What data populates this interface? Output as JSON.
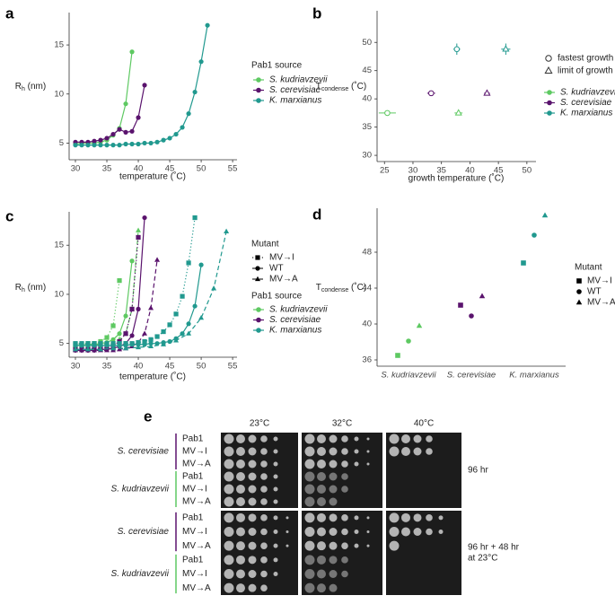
{
  "chart_data": [
    {
      "type": "line",
      "panel": "a",
      "x_label": "temperature (˚C)",
      "y_label": [
        "R",
        "h",
        " (nm)"
      ],
      "legend_title": "Pab1 source",
      "xlim": [
        29,
        55.7
      ],
      "ylim": [
        3.3,
        18.3
      ],
      "xticks": [
        30,
        35,
        40,
        45,
        50,
        55
      ],
      "yticks": [
        5,
        10,
        15
      ],
      "grid": false,
      "series": [
        {
          "name": "S. kudriavzevii",
          "color": "#5ec962",
          "x": [
            30,
            31,
            32,
            33,
            34,
            35,
            36,
            37,
            38,
            39
          ],
          "values": [
            4.9,
            5.0,
            5.0,
            5.0,
            5.1,
            5.3,
            5.8,
            6.5,
            9.0,
            14.3
          ]
        },
        {
          "name": "S. cerevisiae",
          "color": "#5a136d",
          "x": [
            30,
            31,
            32,
            33,
            34,
            35,
            36,
            37,
            38,
            39,
            40,
            41
          ],
          "values": [
            5.1,
            5.1,
            5.1,
            5.2,
            5.3,
            5.5,
            5.9,
            6.4,
            6.1,
            6.2,
            7.6,
            10.9
          ]
        },
        {
          "name": "K. marxianus",
          "color": "#21998f",
          "x": [
            30,
            31,
            32,
            33,
            34,
            35,
            36,
            37,
            38,
            39,
            40,
            41,
            42,
            43,
            44,
            45,
            46,
            47,
            48,
            49,
            50,
            51
          ],
          "values": [
            4.8,
            4.8,
            4.8,
            4.8,
            4.8,
            4.8,
            4.8,
            4.8,
            4.9,
            4.9,
            4.9,
            5.0,
            5.0,
            5.1,
            5.3,
            5.5,
            5.9,
            6.6,
            8.0,
            10.2,
            13.3,
            17.0
          ]
        }
      ]
    },
    {
      "type": "scatter",
      "panel": "b",
      "x_label": "growth temperature (˚C)",
      "y_label": [
        "T",
        "condense",
        " (˚C)"
      ],
      "xlim": [
        23.7,
        51.6
      ],
      "ylim": [
        28.9,
        55.6
      ],
      "xticks": [
        25,
        30,
        35,
        40,
        45,
        50
      ],
      "yticks": [
        30,
        35,
        40,
        45,
        50
      ],
      "grid": false,
      "markers": [
        "circle",
        "triangle"
      ],
      "marker_labels": [
        "fastest growth",
        "limit of growth"
      ],
      "series": [
        {
          "name": "S. kudriavzevii",
          "color": "#5ec962",
          "x": [
            25.5,
            38
          ],
          "values": [
            37.5,
            37.5
          ],
          "xerr": [
            1.5,
            0.7
          ],
          "yerr": [
            0,
            0
          ]
        },
        {
          "name": "S. cerevisiae",
          "color": "#5a136d",
          "x": [
            33.2,
            43
          ],
          "values": [
            41,
            41
          ],
          "xerr": [
            0.7,
            0.5
          ],
          "yerr": [
            0.4,
            0.4
          ]
        },
        {
          "name": "K. marxianus",
          "color": "#21998f",
          "x": [
            37.7,
            46.3
          ],
          "values": [
            48.8,
            48.8
          ],
          "xerr": [
            0.6,
            0.8
          ],
          "yerr": [
            1.0,
            1.0
          ]
        }
      ]
    },
    {
      "type": "line",
      "panel": "c",
      "x_label": "temperature (˚C)",
      "y_label": [
        "R",
        "h",
        " (nm)"
      ],
      "legend_title": "Pab1 source",
      "mutant_title": "Mutant",
      "xlim": [
        29,
        55.7
      ],
      "ylim": [
        3.6,
        18.4
      ],
      "xticks": [
        30,
        35,
        40,
        45,
        50,
        55
      ],
      "yticks": [
        5,
        10,
        15
      ],
      "grid": false,
      "mutants": [
        {
          "name": "MV→I",
          "marker": "square",
          "dash": "dotted"
        },
        {
          "name": "WT",
          "marker": "circle",
          "dash": "solid"
        },
        {
          "name": "MV→A",
          "marker": "triangle",
          "dash": "dashed"
        }
      ],
      "sources": [
        {
          "name": "S. kudriavzevii",
          "color": "#5ec962",
          "mutants": [
            {
              "x": [
                30,
                31,
                32,
                33,
                34,
                35,
                36,
                37
              ],
              "values": [
                4.9,
                4.9,
                5.0,
                5.0,
                5.2,
                5.6,
                6.8,
                11.4
              ]
            },
            {
              "x": [
                30,
                31,
                32,
                33,
                34,
                35,
                36,
                37,
                38,
                39
              ],
              "values": [
                4.8,
                4.8,
                4.9,
                4.9,
                5.0,
                5.1,
                5.4,
                6.0,
                7.8,
                13.4
              ]
            },
            {
              "x": [
                30,
                31,
                32,
                33,
                34,
                35,
                36,
                37,
                38,
                39,
                40
              ],
              "values": [
                4.8,
                4.8,
                4.8,
                4.9,
                4.9,
                5.0,
                5.1,
                5.4,
                6.0,
                8.5,
                16.5
              ]
            }
          ]
        },
        {
          "name": "S. cerevisiae",
          "color": "#5a136d",
          "mutants": [
            {
              "x": [
                30,
                31,
                32,
                33,
                34,
                35,
                36,
                37,
                38,
                39,
                40
              ],
              "values": [
                4.4,
                4.4,
                4.4,
                4.5,
                4.5,
                4.6,
                4.8,
                5.2,
                6.0,
                8.5,
                15.8
              ]
            },
            {
              "x": [
                30,
                31,
                32,
                33,
                34,
                35,
                36,
                37,
                38,
                39,
                40,
                41
              ],
              "values": [
                4.3,
                4.3,
                4.3,
                4.3,
                4.4,
                4.4,
                4.5,
                4.7,
                5.0,
                5.8,
                8.5,
                17.8
              ]
            },
            {
              "x": [
                30,
                31,
                32,
                33,
                34,
                35,
                36,
                37,
                38,
                39,
                40,
                41,
                42,
                43
              ],
              "values": [
                4.3,
                4.3,
                4.3,
                4.3,
                4.3,
                4.3,
                4.3,
                4.4,
                4.5,
                4.7,
                5.1,
                6.0,
                8.6,
                13.5
              ]
            }
          ]
        },
        {
          "name": "K. marxianus",
          "color": "#21998f",
          "mutants": [
            {
              "x": [
                30,
                31,
                32,
                33,
                34,
                35,
                36,
                37,
                38,
                39,
                40,
                41,
                42,
                43,
                44,
                45,
                46,
                47,
                48,
                49
              ],
              "values": [
                5.0,
                5.0,
                5.0,
                5.0,
                5.0,
                5.0,
                5.0,
                5.0,
                5.0,
                5.0,
                5.1,
                5.2,
                5.4,
                5.7,
                6.2,
                6.9,
                8.0,
                9.8,
                13.2,
                17.8
              ]
            },
            {
              "x": [
                30,
                31,
                32,
                33,
                34,
                35,
                36,
                37,
                38,
                39,
                40,
                41,
                42,
                43,
                44,
                45,
                46,
                47,
                48,
                49,
                50
              ],
              "values": [
                4.8,
                4.8,
                4.8,
                4.8,
                4.8,
                4.8,
                4.8,
                4.8,
                4.8,
                4.9,
                4.9,
                4.9,
                5.0,
                5.0,
                5.1,
                5.2,
                5.5,
                6.0,
                7.0,
                8.8,
                13.0
              ]
            },
            {
              "x": [
                30,
                32,
                34,
                36,
                38,
                40,
                42,
                44,
                46,
                48,
                50,
                52,
                54
              ],
              "values": [
                4.4,
                4.4,
                4.4,
                4.5,
                4.5,
                4.6,
                4.7,
                4.9,
                5.3,
                6.0,
                7.6,
                10.6,
                16.4
              ]
            }
          ]
        }
      ]
    },
    {
      "type": "dot",
      "panel": "d",
      "y_label": [
        "T",
        "condense",
        " (˚C)"
      ],
      "legend_title": "Mutant",
      "ylim": [
        35.3,
        52.9
      ],
      "yticks": [
        36,
        40,
        44,
        48
      ],
      "grid": false,
      "categories": [
        "S. kudriavzevii",
        "S. cerevisiae",
        "K. marxianus"
      ],
      "colors": [
        "#5ec962",
        "#5a136d",
        "#21998f"
      ],
      "series": [
        {
          "name": "MV→I",
          "marker": "square",
          "values": [
            36.5,
            42.1,
            46.8
          ]
        },
        {
          "name": "WT",
          "marker": "circle",
          "values": [
            38.1,
            40.9,
            49.9
          ]
        },
        {
          "name": "MV→A",
          "marker": "triangle",
          "values": [
            39.8,
            43.1,
            52.1
          ]
        }
      ]
    }
  ],
  "panel_e": {
    "label": "e",
    "columns": [
      "23°C",
      "32°C",
      "40°C"
    ],
    "blocks": [
      {
        "time": [
          "96 hr"
        ],
        "groups": [
          {
            "strain": "S. cerevisiae",
            "color": "#5a136d",
            "rows": [
              "Pab1",
              "MV→I",
              "MV→A"
            ]
          },
          {
            "strain": "S. kudriavzevii",
            "color": "#5ec962",
            "rows": [
              "Pab1",
              "MV→I",
              "MV→A"
            ]
          }
        ]
      },
      {
        "time": [
          "96 hr + 48 hr",
          "at 23°C"
        ],
        "groups": [
          {
            "strain": "S. cerevisiae",
            "color": "#5a136d",
            "rows": [
              "Pab1",
              "MV→I",
              "MV→A"
            ]
          },
          {
            "strain": "S. kudriavzevii",
            "color": "#5ec962",
            "rows": [
              "Pab1",
              "MV→I",
              "MV→A"
            ]
          }
        ]
      }
    ]
  }
}
